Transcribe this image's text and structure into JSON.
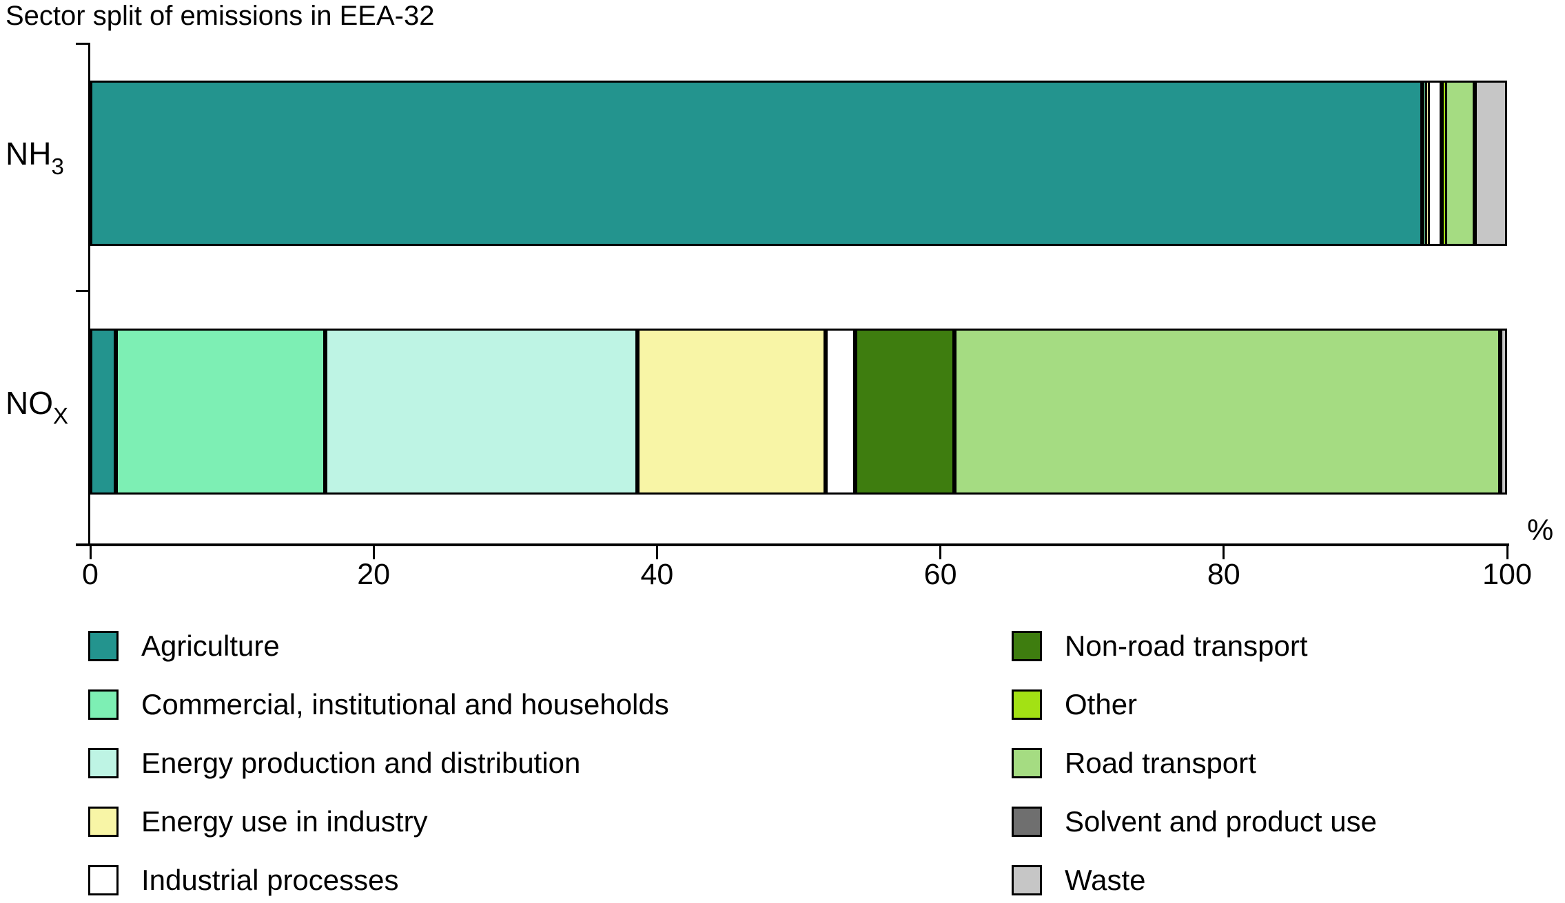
{
  "title": "Sector split of emissions in EEA-32",
  "axis": {
    "percent_label": "%",
    "tick_labels": [
      "0",
      "20",
      "40",
      "60",
      "80",
      "100"
    ]
  },
  "category_labels": [
    {
      "base": "NH",
      "sub": "3"
    },
    {
      "base": "NO",
      "sub": "X"
    }
  ],
  "chart_data": {
    "type": "bar",
    "orientation": "horizontal-stacked",
    "title": "Sector split of emissions in EEA-32",
    "xlabel": "%",
    "xlim": [
      0,
      100
    ],
    "x_ticks": [
      0,
      20,
      40,
      60,
      80,
      100
    ],
    "grid": false,
    "legend_position": "bottom",
    "categories": [
      "NH3",
      "NOX"
    ],
    "series": [
      {
        "name": "Agriculture",
        "color": "#23948E",
        "values": [
          94.0,
          1.8
        ]
      },
      {
        "name": "Commercial, institutional and households",
        "color": "#7DEFB4",
        "values": [
          0.2,
          14.8
        ]
      },
      {
        "name": "Energy production and distribution",
        "color": "#BEF4E4",
        "values": [
          0.0,
          22.0
        ]
      },
      {
        "name": "Energy use in industry",
        "color": "#F8F5A6",
        "values": [
          0.2,
          13.3
        ]
      },
      {
        "name": "Industrial processes",
        "color": "#FFFFFF",
        "values": [
          1.0,
          2.1
        ]
      },
      {
        "name": "Non-road transport",
        "color": "#3E7D0F",
        "values": [
          0.0,
          7.0
        ]
      },
      {
        "name": "Other",
        "color": "#A3E114",
        "values": [
          0.2,
          0.0
        ]
      },
      {
        "name": "Road transport",
        "color": "#A5DC82",
        "values": [
          2.1,
          38.5
        ]
      },
      {
        "name": "Solvent and product use",
        "color": "#6F6F6F",
        "values": [
          0.0,
          0.0
        ]
      },
      {
        "name": "Waste",
        "color": "#C6C6C6",
        "values": [
          2.3,
          0.5
        ]
      }
    ]
  }
}
